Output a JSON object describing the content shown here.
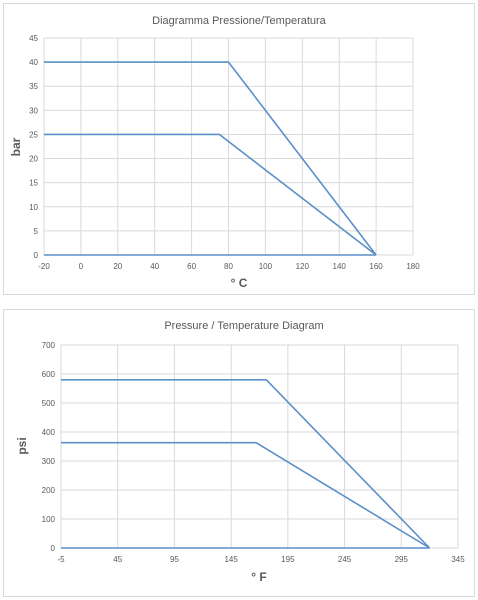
{
  "colors": {
    "series": "#5b8fc9",
    "grid": "#d9d9d9",
    "text": "#595959",
    "border": "#d9d9d9"
  },
  "chart_data": [
    {
      "type": "line",
      "title": "Diagramma Pressione/Temperatura",
      "xlabel": "° C",
      "ylabel": "bar",
      "xlim": [
        -20,
        180
      ],
      "ylim": [
        0,
        45
      ],
      "xticks": [
        -20,
        0,
        20,
        40,
        60,
        80,
        100,
        120,
        140,
        160,
        180
      ],
      "yticks": [
        0,
        5,
        10,
        15,
        20,
        25,
        30,
        35,
        40,
        45
      ],
      "grid": true,
      "series": [
        {
          "x": [
            -20,
            80,
            160
          ],
          "y": [
            40,
            40,
            0
          ]
        },
        {
          "x": [
            -20,
            75,
            160
          ],
          "y": [
            25,
            25,
            0
          ]
        },
        {
          "x": [
            -20,
            160
          ],
          "y": [
            0,
            0
          ]
        }
      ]
    },
    {
      "type": "line",
      "title": "Pressure / Temperature Diagram",
      "xlabel": "° F",
      "ylabel": "psi",
      "xlim": [
        -5,
        345
      ],
      "ylim": [
        0,
        700
      ],
      "xticks": [
        -5,
        45,
        95,
        145,
        195,
        245,
        295,
        345
      ],
      "yticks": [
        0,
        100,
        200,
        300,
        400,
        500,
        600,
        700
      ],
      "grid": true,
      "series": [
        {
          "x": [
            -5,
            176,
            320
          ],
          "y": [
            580,
            580,
            0
          ]
        },
        {
          "x": [
            -5,
            167,
            320
          ],
          "y": [
            363,
            363,
            0
          ]
        },
        {
          "x": [
            -5,
            320
          ],
          "y": [
            0,
            0
          ]
        }
      ]
    }
  ]
}
